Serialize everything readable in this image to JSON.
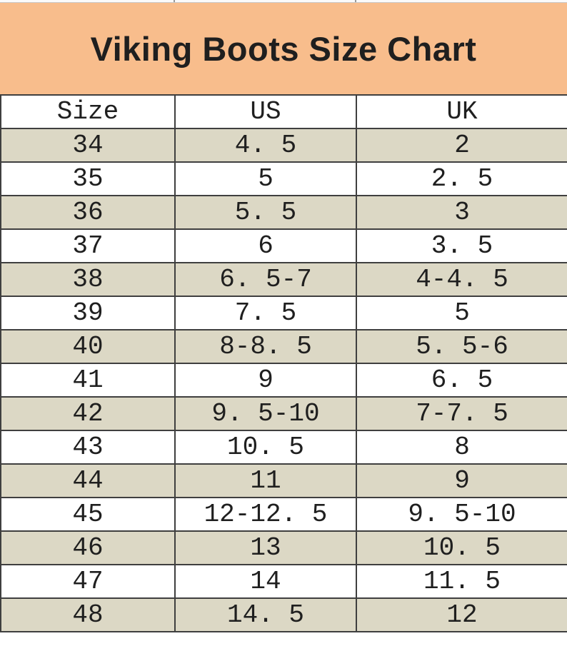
{
  "banner": {
    "title": "Viking Boots Size Chart"
  },
  "colors": {
    "banner_background": "#f8bd8c",
    "row_alternate": "#dcd8c5",
    "row_default": "#ffffff",
    "grid_border": "#3f3f3f",
    "text": "#1f1f1f"
  },
  "chart_data": {
    "type": "table",
    "title": "Viking Boots Size Chart",
    "columns": [
      "Size",
      "US",
      "UK"
    ],
    "rows": [
      [
        "34",
        "4. 5",
        "2"
      ],
      [
        "35",
        "5",
        "2. 5"
      ],
      [
        "36",
        "5. 5",
        "3"
      ],
      [
        "37",
        "6",
        "3. 5"
      ],
      [
        "38",
        "6. 5-7",
        "4-4. 5"
      ],
      [
        "39",
        "7. 5",
        "5"
      ],
      [
        "40",
        "8-8. 5",
        "5. 5-6"
      ],
      [
        "41",
        "9",
        "6. 5"
      ],
      [
        "42",
        "9. 5-10",
        "7-7. 5"
      ],
      [
        "43",
        "10. 5",
        "8"
      ],
      [
        "44",
        "11",
        "9"
      ],
      [
        "45",
        "12-12. 5",
        "9. 5-10"
      ],
      [
        "46",
        "13",
        "10. 5"
      ],
      [
        "47",
        "14",
        "11. 5"
      ],
      [
        "48",
        "14. 5",
        "12"
      ]
    ],
    "layout": {
      "alternating_row_shading": true,
      "first_data_row_shaded": true,
      "grid": true
    }
  }
}
